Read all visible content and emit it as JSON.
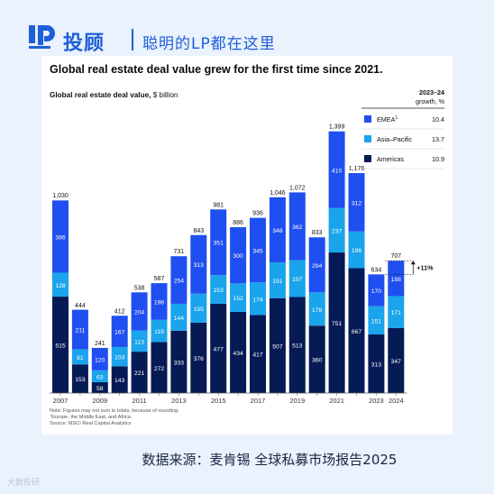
{
  "brand": {
    "name": "投顾",
    "tagline": "聪明的LP都在这里"
  },
  "footer": {
    "source": "数据来源：麦肯锡 全球私募市场报告2025",
    "watermark": "大数投研"
  },
  "colors": {
    "brand_blue": "#1f5fd8",
    "background": "#e9f2fd",
    "americas": "#061a56",
    "asia_pacific": "#1aa4ec",
    "emea": "#1f4ff0"
  },
  "chart_data": {
    "type": "bar",
    "stacked": true,
    "title": "Global real estate deal value grew for the first time since 2021.",
    "subtitle": "Global real estate deal value,",
    "unit": "$ billion",
    "categories": [
      "2007",
      "2008",
      "2009",
      "2010",
      "2011",
      "2012",
      "2013",
      "2014",
      "2015",
      "2016",
      "2017",
      "2018",
      "2019",
      "2020",
      "2021",
      "2022",
      "2023",
      "2024"
    ],
    "xtick_labels": [
      "2007",
      "",
      "2009",
      "",
      "2011",
      "",
      "2013",
      "",
      "2015",
      "",
      "2017",
      "",
      "2019",
      "",
      "2021",
      "",
      "2023",
      "2024"
    ],
    "series": [
      {
        "name": "Americas",
        "color": "#061a56",
        "values": [
          515,
          153,
          58,
          143,
          221,
          272,
          333,
          376,
          477,
          434,
          417,
          507,
          513,
          360,
          751,
          667,
          313,
          347
        ]
      },
      {
        "name": "Asia–Pacific",
        "color": "#1aa4ec",
        "values": [
          128,
          81,
          63,
          103,
          113,
          119,
          144,
          155,
          153,
          152,
          174,
          191,
          197,
          178,
          237,
          196,
          151,
          171
        ]
      },
      {
        "name": "EMEA",
        "sup": "1",
        "color": "#1f4ff0",
        "values": [
          386,
          211,
          120,
          167,
          204,
          196,
          254,
          313,
          351,
          300,
          345,
          348,
          362,
          294,
          410,
          312,
          170,
          188
        ]
      }
    ],
    "totals": [
      1030,
      444,
      241,
      412,
      538,
      587,
      731,
      843,
      981,
      886,
      936,
      1046,
      1072,
      833,
      1399,
      1176,
      634,
      707
    ],
    "total_labels": [
      "1,030",
      "444",
      "241",
      "412",
      "538",
      "587",
      "731",
      "843",
      "981",
      "886",
      "936",
      "1,046",
      "1,072",
      "833",
      "1,399",
      "1,176",
      "634",
      "707"
    ],
    "ylim": [
      0,
      1440
    ],
    "legend": {
      "position": "top-right",
      "header_line1": "2023–24",
      "header_line2": "growth, %",
      "items": [
        {
          "name": "EMEA",
          "sup": "1",
          "growth": "10.4"
        },
        {
          "name": "Asia–Pacific",
          "growth": "13.7"
        },
        {
          "name": "Americas",
          "growth": "10.9"
        }
      ]
    },
    "annotation": "+11%",
    "notes": [
      "Note: Figures may not sum to totals, because of rounding.",
      "Europe, the Middle East, and Africa.",
      "Source: MSCI Real Capital Analytics"
    ],
    "note_sup": "1"
  }
}
